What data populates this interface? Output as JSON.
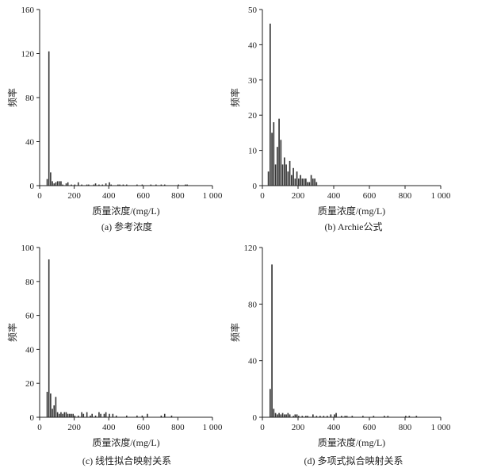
{
  "chart_data": [
    {
      "type": "bar",
      "caption": "(a) 参考浓度",
      "xlabel": "质量浓度/(mg/L)",
      "ylabel": "频率",
      "xlim": [
        0,
        1000
      ],
      "ylim": [
        0,
        160
      ],
      "xticks": [
        0,
        200,
        400,
        600,
        800,
        1000
      ],
      "xtick_labels": [
        "0",
        "200",
        "400",
        "600",
        "800",
        "1 000"
      ],
      "yticks": [
        0,
        40,
        80,
        120,
        160
      ],
      "ytick_labels": [
        "0",
        "40",
        "80",
        "120",
        "160"
      ],
      "bin_width": 10,
      "bins": [
        [
          40,
          6
        ],
        [
          50,
          122
        ],
        [
          60,
          12
        ],
        [
          70,
          4
        ],
        [
          80,
          2
        ],
        [
          90,
          3
        ],
        [
          100,
          4
        ],
        [
          110,
          4
        ],
        [
          120,
          4
        ],
        [
          130,
          1
        ],
        [
          150,
          2
        ],
        [
          160,
          3
        ],
        [
          180,
          1
        ],
        [
          200,
          1
        ],
        [
          220,
          3
        ],
        [
          240,
          1
        ],
        [
          270,
          1
        ],
        [
          280,
          1
        ],
        [
          310,
          1
        ],
        [
          320,
          2
        ],
        [
          340,
          1
        ],
        [
          360,
          1
        ],
        [
          380,
          2
        ],
        [
          400,
          3
        ],
        [
          410,
          1
        ],
        [
          450,
          1
        ],
        [
          460,
          1
        ],
        [
          480,
          1
        ],
        [
          500,
          1
        ],
        [
          560,
          1
        ],
        [
          590,
          1
        ],
        [
          640,
          1
        ],
        [
          670,
          1
        ],
        [
          700,
          1
        ],
        [
          720,
          1
        ],
        [
          800,
          1
        ],
        [
          840,
          1
        ],
        [
          850,
          1
        ]
      ]
    },
    {
      "type": "bar",
      "caption": "(b) Archie公式",
      "xlabel": "质量浓度/(mg/L)",
      "ylabel": "频率",
      "xlim": [
        0,
        1000
      ],
      "ylim": [
        0,
        50
      ],
      "xticks": [
        0,
        200,
        400,
        600,
        800,
        1000
      ],
      "xtick_labels": [
        "0",
        "200",
        "400",
        "600",
        "800",
        "1 000"
      ],
      "yticks": [
        0,
        10,
        20,
        30,
        40,
        50
      ],
      "ytick_labels": [
        "0",
        "10",
        "20",
        "30",
        "40",
        "50"
      ],
      "bin_width": 10,
      "bins": [
        [
          30,
          4
        ],
        [
          40,
          46
        ],
        [
          50,
          15
        ],
        [
          60,
          18
        ],
        [
          70,
          6
        ],
        [
          80,
          11
        ],
        [
          90,
          19
        ],
        [
          100,
          13
        ],
        [
          110,
          6
        ],
        [
          120,
          8
        ],
        [
          130,
          6
        ],
        [
          140,
          4
        ],
        [
          150,
          7
        ],
        [
          160,
          3
        ],
        [
          170,
          5
        ],
        [
          180,
          2
        ],
        [
          190,
          4
        ],
        [
          200,
          2
        ],
        [
          210,
          3
        ],
        [
          220,
          2
        ],
        [
          230,
          2
        ],
        [
          240,
          2
        ],
        [
          250,
          1
        ],
        [
          260,
          1
        ],
        [
          270,
          3
        ],
        [
          280,
          2
        ],
        [
          290,
          2
        ],
        [
          300,
          1
        ]
      ]
    },
    {
      "type": "bar",
      "caption": "(c) 线性拟合映射关系",
      "xlabel": "质量浓度/(mg/L)",
      "ylabel": "频率",
      "xlim": [
        0,
        1000
      ],
      "ylim": [
        0,
        100
      ],
      "xticks": [
        0,
        200,
        400,
        600,
        800,
        1000
      ],
      "xtick_labels": [
        "0",
        "200",
        "400",
        "600",
        "800",
        "1 000"
      ],
      "yticks": [
        0,
        20,
        40,
        60,
        80,
        100
      ],
      "ytick_labels": [
        "0",
        "20",
        "40",
        "60",
        "80",
        "100"
      ],
      "bin_width": 10,
      "bins": [
        [
          40,
          15
        ],
        [
          50,
          93
        ],
        [
          60,
          14
        ],
        [
          70,
          5
        ],
        [
          80,
          7
        ],
        [
          90,
          12
        ],
        [
          100,
          3
        ],
        [
          110,
          2
        ],
        [
          120,
          3
        ],
        [
          130,
          2
        ],
        [
          140,
          3
        ],
        [
          150,
          3
        ],
        [
          160,
          2
        ],
        [
          170,
          2
        ],
        [
          180,
          2
        ],
        [
          190,
          2
        ],
        [
          200,
          1
        ],
        [
          220,
          1
        ],
        [
          240,
          3
        ],
        [
          250,
          2
        ],
        [
          270,
          3
        ],
        [
          290,
          1
        ],
        [
          300,
          2
        ],
        [
          320,
          1
        ],
        [
          340,
          3
        ],
        [
          350,
          2
        ],
        [
          370,
          2
        ],
        [
          380,
          3
        ],
        [
          400,
          2
        ],
        [
          420,
          2
        ],
        [
          440,
          1
        ],
        [
          500,
          1
        ],
        [
          560,
          1
        ],
        [
          590,
          1
        ],
        [
          620,
          2
        ],
        [
          700,
          1
        ],
        [
          720,
          2
        ],
        [
          760,
          1
        ]
      ]
    },
    {
      "type": "bar",
      "caption": "(d) 多项式拟合映射关系",
      "xlabel": "质量浓度/(mg/L)",
      "ylabel": "频率",
      "xlim": [
        0,
        1000
      ],
      "ylim": [
        0,
        120
      ],
      "xticks": [
        0,
        200,
        400,
        600,
        800,
        1000
      ],
      "xtick_labels": [
        "0",
        "200",
        "400",
        "600",
        "800",
        "1 000"
      ],
      "yticks": [
        0,
        40,
        80,
        120
      ],
      "ytick_labels": [
        "0",
        "40",
        "80",
        "120"
      ],
      "bin_width": 10,
      "bins": [
        [
          40,
          20
        ],
        [
          50,
          108
        ],
        [
          60,
          6
        ],
        [
          70,
          3
        ],
        [
          80,
          2
        ],
        [
          90,
          3
        ],
        [
          100,
          2
        ],
        [
          110,
          3
        ],
        [
          120,
          2
        ],
        [
          130,
          2
        ],
        [
          140,
          3
        ],
        [
          150,
          2
        ],
        [
          170,
          1
        ],
        [
          180,
          2
        ],
        [
          190,
          2
        ],
        [
          200,
          1
        ],
        [
          220,
          1
        ],
        [
          240,
          1
        ],
        [
          250,
          1
        ],
        [
          280,
          2
        ],
        [
          300,
          1
        ],
        [
          320,
          1
        ],
        [
          340,
          1
        ],
        [
          360,
          1
        ],
        [
          380,
          2
        ],
        [
          400,
          2
        ],
        [
          410,
          3
        ],
        [
          440,
          1
        ],
        [
          460,
          1
        ],
        [
          470,
          1
        ],
        [
          500,
          1
        ],
        [
          560,
          1
        ],
        [
          620,
          1
        ],
        [
          680,
          1
        ],
        [
          700,
          1
        ],
        [
          800,
          1
        ],
        [
          820,
          1
        ],
        [
          860,
          1
        ]
      ]
    }
  ]
}
